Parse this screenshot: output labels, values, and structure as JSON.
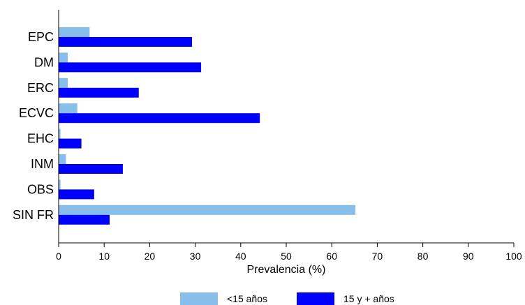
{
  "chart_data": {
    "type": "bar",
    "orientation": "horizontal",
    "categories": [
      "EPC",
      "DM",
      "ERC",
      "ECVC",
      "EHC",
      "INM",
      "OBS",
      "SIN FR"
    ],
    "series": [
      {
        "name": "<15 años",
        "color": "#87BEEB",
        "values": [
          6.8,
          2.0,
          2.0,
          4.1,
          0.4,
          1.6,
          0.4,
          65.2
        ]
      },
      {
        "name": "15 y + años",
        "color": "#0000FF",
        "values": [
          29.3,
          31.3,
          17.6,
          44.2,
          5.0,
          14.1,
          7.8,
          11.2
        ]
      }
    ],
    "xlabel": "Prevalencia (%)",
    "xticks": [
      0,
      10,
      20,
      30,
      40,
      50,
      60,
      70,
      80,
      90,
      100
    ],
    "xlim": [
      0,
      100
    ],
    "grid": false,
    "legend_position": "bottom"
  }
}
